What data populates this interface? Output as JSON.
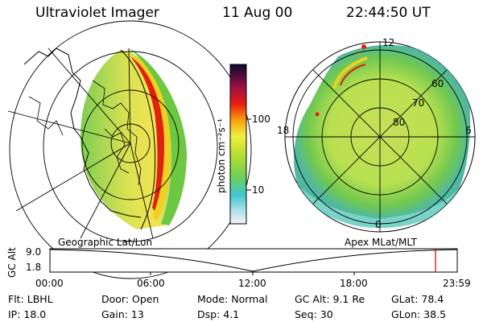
{
  "header": {
    "title": "Ultraviolet Imager",
    "date": "11 Aug 00",
    "time": "22:44:50 UT"
  },
  "geo_panel": {
    "caption": "Geographic Lat/Lon"
  },
  "polar_panel": {
    "caption": "Apex  MLat/MLT",
    "mlt_labels": {
      "top": "12",
      "left": "18",
      "right": "6",
      "bottom": "0"
    },
    "lat_labels": [
      "60",
      "70",
      "80"
    ]
  },
  "colorbar": {
    "unit": "photon cm⁻²s⁻¹",
    "ticks": [
      "100",
      "10"
    ]
  },
  "timeline": {
    "axis_label": "GC Alt",
    "y_ticks": [
      "9.0",
      "1.8"
    ],
    "x_ticks": [
      "00:00",
      "06:00",
      "12:00",
      "18:00",
      "23:59"
    ]
  },
  "info": {
    "filter": "Flt: LBHL",
    "ip": "IP: 18.0",
    "door": "Door: Open",
    "gain": "Gain: 13",
    "mode": "Mode: Normal",
    "dsp": "Dsp:    4.1",
    "gcalt": "GC Alt: 9.1 Re",
    "seq": "Seq: 30",
    "glat": "GLat:    78.4",
    "glon": "GLon:   38.5"
  },
  "colors": {
    "marker": "#cc0000",
    "aurora_peak": "#d01010",
    "aurora_mid": "#e8e020",
    "aurora_low": "#60c840"
  }
}
